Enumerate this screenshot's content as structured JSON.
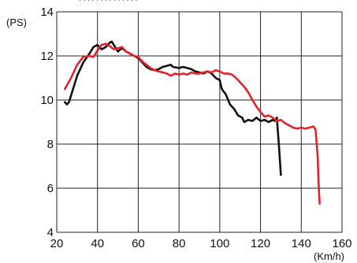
{
  "chart_data": {
    "type": "line",
    "top_partial_text": "· · · · · ·  · · · ·  · · · ·",
    "ylabel": "(PS)",
    "xlabel": "(Km/h)",
    "xlim": [
      20,
      160
    ],
    "ylim": [
      4,
      14
    ],
    "x_ticks": [
      "20",
      "40",
      "60",
      "80",
      "100",
      "120",
      "140",
      "160"
    ],
    "y_ticks": [
      "4",
      "6",
      "8",
      "10",
      "12",
      "14"
    ],
    "grid": true,
    "legend": "none",
    "series": [
      {
        "color": "#111111",
        "points": [
          [
            24,
            9.9
          ],
          [
            25,
            9.8
          ],
          [
            26,
            9.9
          ],
          [
            28,
            10.5
          ],
          [
            30,
            11.1
          ],
          [
            33,
            11.7
          ],
          [
            36,
            12.1
          ],
          [
            38,
            12.4
          ],
          [
            40,
            12.5
          ],
          [
            42,
            12.3
          ],
          [
            44,
            12.4
          ],
          [
            46,
            12.6
          ],
          [
            47,
            12.65
          ],
          [
            48,
            12.5
          ],
          [
            50,
            12.2
          ],
          [
            52,
            12.35
          ],
          [
            54,
            12.2
          ],
          [
            56,
            12.1
          ],
          [
            58,
            12.0
          ],
          [
            60,
            11.9
          ],
          [
            62,
            11.7
          ],
          [
            64,
            11.5
          ],
          [
            66,
            11.4
          ],
          [
            68,
            11.35
          ],
          [
            70,
            11.4
          ],
          [
            72,
            11.5
          ],
          [
            74,
            11.55
          ],
          [
            76,
            11.6
          ],
          [
            77,
            11.5
          ],
          [
            80,
            11.45
          ],
          [
            82,
            11.5
          ],
          [
            84,
            11.45
          ],
          [
            86,
            11.4
          ],
          [
            88,
            11.3
          ],
          [
            90,
            11.25
          ],
          [
            92,
            11.2
          ],
          [
            94,
            11.3
          ],
          [
            96,
            11.2
          ],
          [
            98,
            11.0
          ],
          [
            100,
            10.9
          ],
          [
            101,
            10.5
          ],
          [
            103,
            10.25
          ],
          [
            105,
            9.8
          ],
          [
            107,
            9.6
          ],
          [
            109,
            9.3
          ],
          [
            111,
            9.2
          ],
          [
            112,
            9.0
          ],
          [
            114,
            9.1
          ],
          [
            116,
            9.05
          ],
          [
            118,
            9.2
          ],
          [
            120,
            9.05
          ],
          [
            122,
            9.1
          ],
          [
            124,
            9.0
          ],
          [
            126,
            9.1
          ],
          [
            127,
            9.05
          ],
          [
            128,
            9.2
          ],
          [
            129,
            8.0
          ],
          [
            129.5,
            7.3
          ],
          [
            130,
            6.6
          ]
        ]
      },
      {
        "color": "#e8202a",
        "points": [
          [
            24,
            10.5
          ],
          [
            27,
            11.0
          ],
          [
            30,
            11.6
          ],
          [
            33,
            11.95
          ],
          [
            36,
            12.0
          ],
          [
            38,
            11.95
          ],
          [
            40,
            12.25
          ],
          [
            42,
            12.5
          ],
          [
            44,
            12.55
          ],
          [
            46,
            12.45
          ],
          [
            48,
            12.3
          ],
          [
            50,
            12.35
          ],
          [
            52,
            12.4
          ],
          [
            54,
            12.2
          ],
          [
            56,
            12.1
          ],
          [
            58,
            12.0
          ],
          [
            60,
            11.95
          ],
          [
            62,
            11.75
          ],
          [
            64,
            11.6
          ],
          [
            66,
            11.45
          ],
          [
            68,
            11.35
          ],
          [
            70,
            11.3
          ],
          [
            72,
            11.25
          ],
          [
            74,
            11.2
          ],
          [
            76,
            11.1
          ],
          [
            78,
            11.2
          ],
          [
            80,
            11.15
          ],
          [
            82,
            11.2
          ],
          [
            84,
            11.15
          ],
          [
            86,
            11.25
          ],
          [
            88,
            11.2
          ],
          [
            90,
            11.2
          ],
          [
            92,
            11.25
          ],
          [
            94,
            11.3
          ],
          [
            96,
            11.25
          ],
          [
            98,
            11.35
          ],
          [
            100,
            11.3
          ],
          [
            102,
            11.2
          ],
          [
            104,
            11.2
          ],
          [
            106,
            11.15
          ],
          [
            108,
            11.0
          ],
          [
            110,
            10.8
          ],
          [
            112,
            10.6
          ],
          [
            114,
            10.35
          ],
          [
            116,
            10.0
          ],
          [
            118,
            9.7
          ],
          [
            120,
            9.45
          ],
          [
            122,
            9.25
          ],
          [
            124,
            9.3
          ],
          [
            126,
            9.2
          ],
          [
            128,
            9.05
          ],
          [
            130,
            9.1
          ],
          [
            132,
            8.95
          ],
          [
            134,
            8.85
          ],
          [
            136,
            8.75
          ],
          [
            138,
            8.7
          ],
          [
            140,
            8.75
          ],
          [
            142,
            8.7
          ],
          [
            144,
            8.75
          ],
          [
            146,
            8.8
          ],
          [
            147,
            8.65
          ],
          [
            148,
            7.5
          ],
          [
            148.5,
            6.2
          ],
          [
            149,
            5.3
          ]
        ]
      }
    ]
  }
}
